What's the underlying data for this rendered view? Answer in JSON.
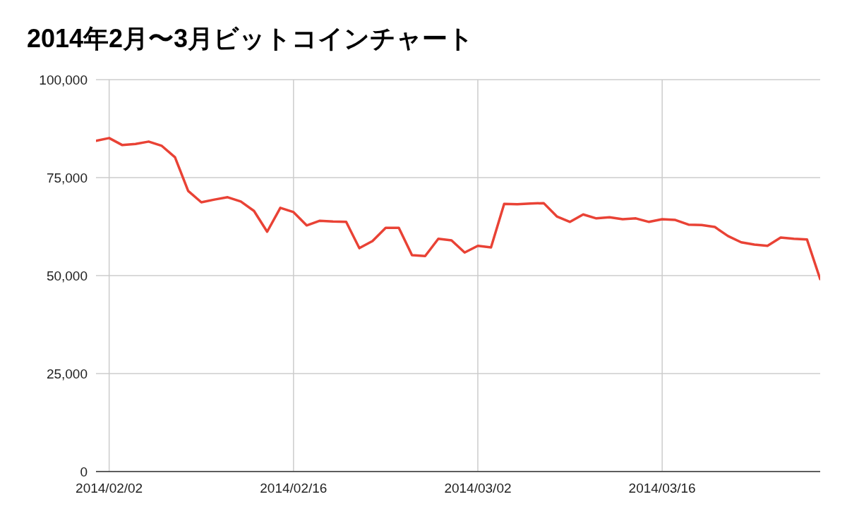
{
  "chart_data": {
    "type": "line",
    "title": "2014年2月〜3月ビットコインチャート",
    "x": [
      "2014-02-01",
      "2014-02-02",
      "2014-02-03",
      "2014-02-04",
      "2014-02-05",
      "2014-02-06",
      "2014-02-07",
      "2014-02-08",
      "2014-02-09",
      "2014-02-10",
      "2014-02-11",
      "2014-02-12",
      "2014-02-13",
      "2014-02-14",
      "2014-02-15",
      "2014-02-16",
      "2014-02-17",
      "2014-02-18",
      "2014-02-19",
      "2014-02-20",
      "2014-02-21",
      "2014-02-22",
      "2014-02-23",
      "2014-02-24",
      "2014-02-25",
      "2014-02-26",
      "2014-02-27",
      "2014-02-28",
      "2014-03-01",
      "2014-03-02",
      "2014-03-03",
      "2014-03-04",
      "2014-03-05",
      "2014-03-06",
      "2014-03-07",
      "2014-03-08",
      "2014-03-09",
      "2014-03-10",
      "2014-03-11",
      "2014-03-12",
      "2014-03-13",
      "2014-03-14",
      "2014-03-15",
      "2014-03-16",
      "2014-03-17",
      "2014-03-18",
      "2014-03-19",
      "2014-03-20",
      "2014-03-21",
      "2014-03-22",
      "2014-03-23",
      "2014-03-24",
      "2014-03-25",
      "2014-03-26",
      "2014-03-27",
      "2014-03-28"
    ],
    "series": [
      {
        "color": "#e94235",
        "values": [
          84400,
          85100,
          83300,
          83600,
          84200,
          83100,
          80200,
          71600,
          68700,
          69400,
          70000,
          68900,
          66500,
          61200,
          67300,
          66200,
          62800,
          64000,
          63800,
          63700,
          57000,
          58800,
          62200,
          62200,
          55200,
          55000,
          59400,
          59000,
          55900,
          57600,
          57200,
          68300,
          68200,
          68400,
          68500,
          65100,
          63700,
          65600,
          64600,
          64900,
          64400,
          64600,
          63700,
          64400,
          64200,
          63000,
          62900,
          62400,
          60100,
          58500,
          57900,
          57600,
          59700,
          59400,
          59200,
          49100
        ]
      }
    ],
    "xlim": [
      "2014-02-01",
      "2014-03-28"
    ],
    "xticks": [
      {
        "value": "2014-02-02",
        "label": "2014/02/02"
      },
      {
        "value": "2014-02-16",
        "label": "2014/02/16"
      },
      {
        "value": "2014-03-02",
        "label": "2014/03/02"
      },
      {
        "value": "2014-03-16",
        "label": "2014/03/16"
      }
    ],
    "ylim": [
      0,
      100000
    ],
    "yticks": [
      {
        "value": 0,
        "label": "0"
      },
      {
        "value": 25000,
        "label": "25,000"
      },
      {
        "value": 50000,
        "label": "50,000"
      },
      {
        "value": 75000,
        "label": "75,000"
      },
      {
        "value": 100000,
        "label": "100,000"
      }
    ],
    "grid": true,
    "line_style": "solid"
  }
}
